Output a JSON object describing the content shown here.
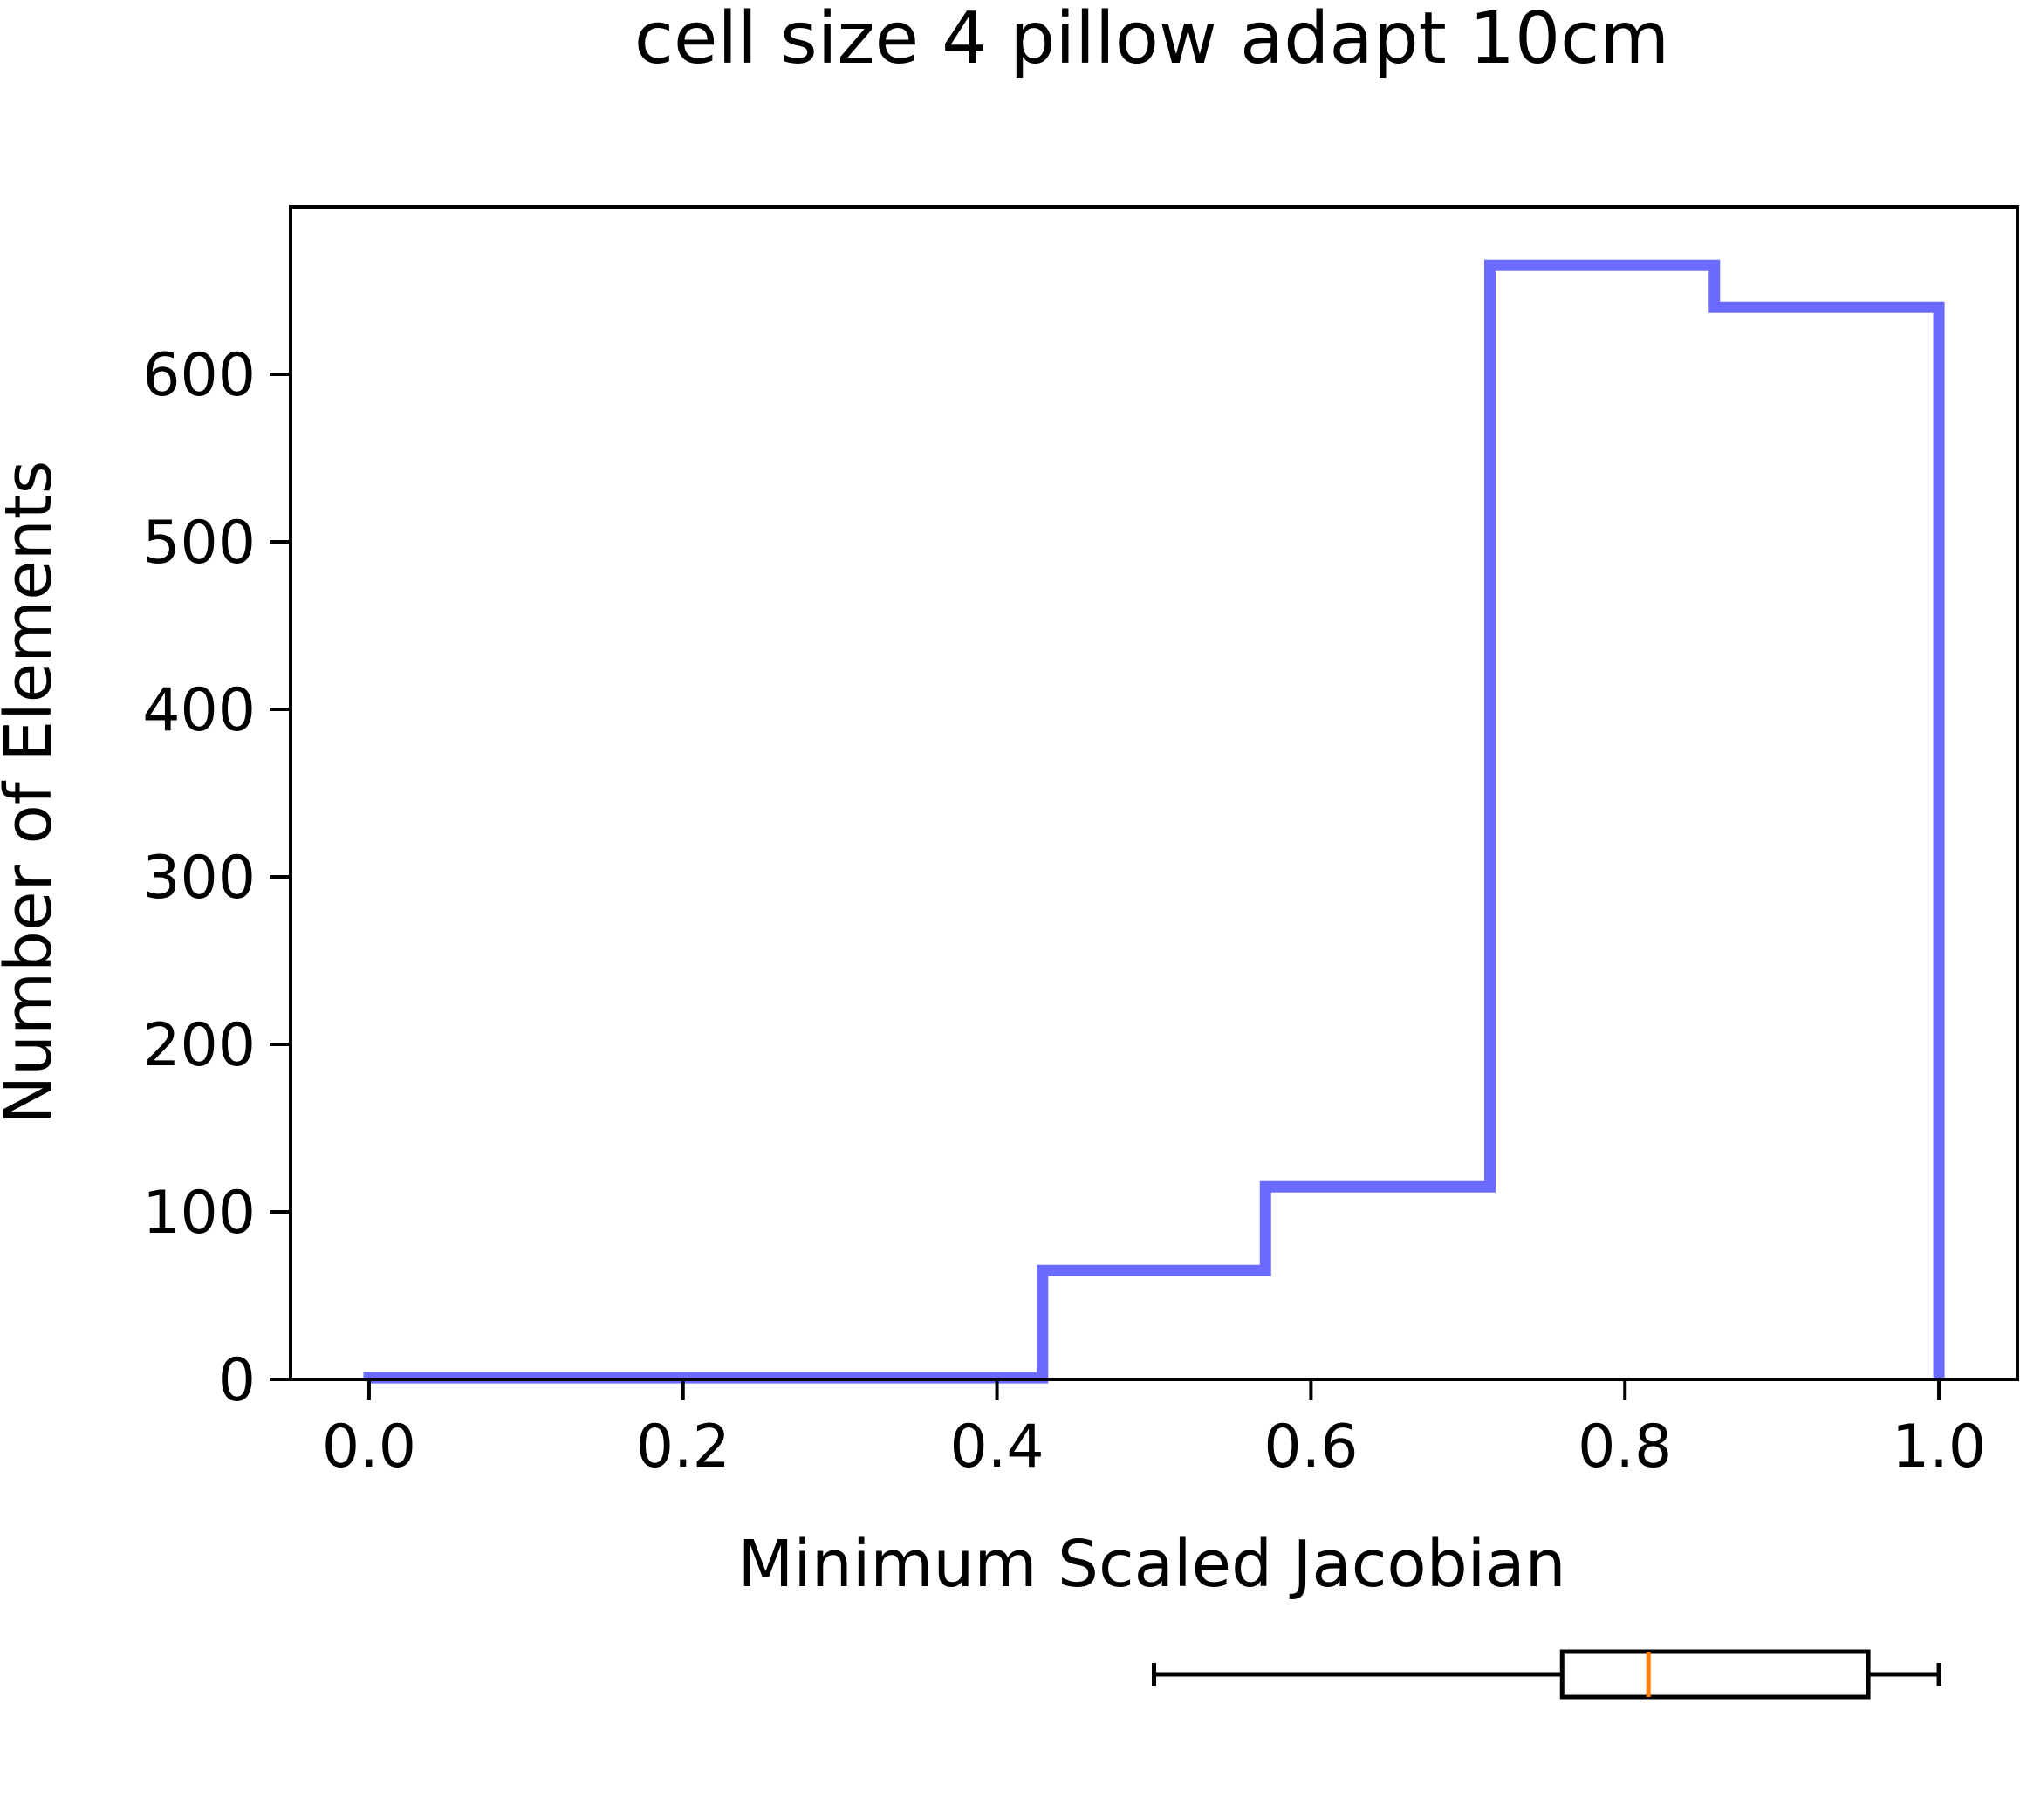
{
  "colors": {
    "hist": "#6b6bff",
    "axes": "#000000",
    "median": "#ff7f0e"
  },
  "chart_data": {
    "type": "histogram",
    "title": "cell size 4 pillow adapt 10cm",
    "xlabel": "Minimum Scaled Jacobian",
    "ylabel": "Number of Elements",
    "xlim": [
      -0.05,
      1.05
    ],
    "ylim": [
      0,
      700
    ],
    "xticks": [
      0.0,
      0.2,
      0.4,
      0.6,
      0.8,
      1.0
    ],
    "xtick_labels": [
      "0.0",
      "0.2",
      "0.4",
      "0.6",
      "0.8",
      "1.0"
    ],
    "yticks": [
      0,
      100,
      200,
      300,
      400,
      500,
      600
    ],
    "ytick_labels": [
      "0",
      "100",
      "200",
      "300",
      "400",
      "500",
      "600"
    ],
    "histtype": "step",
    "bin_edges": [
      0.0,
      0.143,
      0.286,
      0.429,
      0.571,
      0.714,
      0.857,
      1.0
    ],
    "counts": [
      1,
      1,
      1,
      65,
      115,
      665,
      640
    ],
    "boxplot": {
      "whisker_low": 0.5,
      "q1": 0.76,
      "median": 0.815,
      "q3": 0.955,
      "whisker_high": 1.0
    }
  }
}
